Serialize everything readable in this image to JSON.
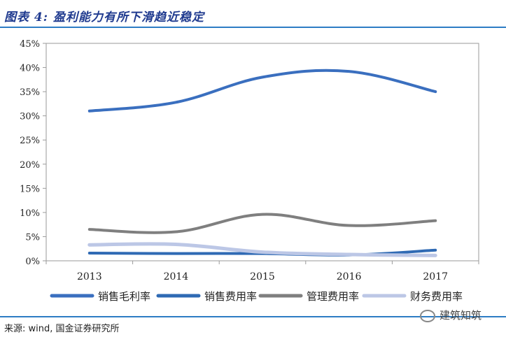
{
  "title": "图表 4: 盈利能力有所下滑趋近稳定",
  "source": "来源: wind, 国金证券研究所",
  "watermark": "建筑知筑",
  "chart_data": {
    "type": "line",
    "categories": [
      "2013",
      "2014",
      "2015",
      "2016",
      "2017"
    ],
    "ylim": [
      0,
      45
    ],
    "yticks": [
      0,
      5,
      10,
      15,
      20,
      25,
      30,
      35,
      40,
      45
    ],
    "ytick_suffix": "%",
    "grid": false,
    "legend_position": "bottom",
    "series": [
      {
        "name": "销售毛利率",
        "color": "#3a6fbf",
        "width": 4,
        "values": [
          31.0,
          32.8,
          38.0,
          39.2,
          35.0
        ]
      },
      {
        "name": "销售费用率",
        "color": "#2f6ab4",
        "width": 4,
        "values": [
          1.6,
          1.5,
          1.5,
          1.2,
          2.2
        ]
      },
      {
        "name": "管理费用率",
        "color": "#7f7f7f",
        "width": 4,
        "values": [
          6.5,
          6.0,
          9.6,
          7.3,
          8.3
        ]
      },
      {
        "name": "财务费用率",
        "color": "#bcc7e6",
        "width": 5,
        "values": [
          3.3,
          3.4,
          1.8,
          1.3,
          1.1
        ]
      }
    ]
  }
}
